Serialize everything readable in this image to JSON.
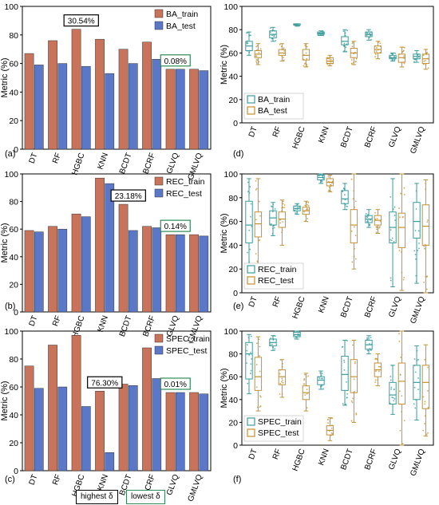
{
  "chart_data": [
    {
      "type": "bar",
      "panel_label": "(a)",
      "ylabel": "Metric (%)",
      "ylim": [
        0,
        100
      ],
      "yticks": [
        0,
        20,
        40,
        60,
        80,
        100
      ],
      "categories": [
        "DT",
        "RF",
        "HGBC",
        "KNN",
        "BCDT",
        "BCRF",
        "GLVQ",
        "GMLVQ"
      ],
      "series": [
        {
          "name": "BA_train",
          "color": "#c8735a",
          "values": [
            67,
            76,
            84,
            77,
            70,
            75,
            56,
            56
          ]
        },
        {
          "name": "BA_test",
          "color": "#5b78c8",
          "values": [
            59,
            60,
            58,
            53,
            60,
            63,
            56,
            55
          ]
        }
      ],
      "annotations": [
        {
          "text": "30.54%",
          "type": "highest",
          "category": "HGBC"
        },
        {
          "text": "0.08%",
          "type": "lowest",
          "category": "GLVQ"
        }
      ],
      "legend": "top-right"
    },
    {
      "type": "bar",
      "panel_label": "(b)",
      "ylabel": "Metric (%)",
      "ylim": [
        0,
        100
      ],
      "yticks": [
        0,
        20,
        40,
        60,
        80,
        100
      ],
      "categories": [
        "DT",
        "RF",
        "HGBC",
        "KNN",
        "BCDT",
        "BCRF",
        "GLVQ",
        "GMLVQ"
      ],
      "series": [
        {
          "name": "REC_train",
          "color": "#c8735a",
          "values": [
            59,
            62,
            71,
            97,
            78,
            62,
            56,
            56
          ]
        },
        {
          "name": "REC_test",
          "color": "#5b78c8",
          "values": [
            58,
            60,
            69,
            93,
            59,
            61,
            56,
            55
          ]
        }
      ],
      "annotations": [
        {
          "text": "23.18%",
          "type": "highest",
          "category": "BCDT"
        },
        {
          "text": "0.14%",
          "type": "lowest",
          "category": "GLVQ"
        }
      ],
      "legend": "top-right"
    },
    {
      "type": "bar",
      "panel_label": "(c)",
      "ylabel": "Metric (%)",
      "ylim": [
        0,
        100
      ],
      "yticks": [
        0,
        20,
        40,
        60,
        80,
        100
      ],
      "categories": [
        "DT",
        "RF",
        "HGBC",
        "KNN",
        "BCDT",
        "BCRF",
        "GLVQ",
        "GMLVQ"
      ],
      "series": [
        {
          "name": "SPEC_train",
          "color": "#c8735a",
          "values": [
            75,
            90,
            97,
            57,
            62,
            88,
            56,
            56
          ]
        },
        {
          "name": "SPEC_test",
          "color": "#5b78c8",
          "values": [
            59,
            60,
            46,
            13,
            61,
            66,
            56,
            55
          ]
        }
      ],
      "annotations": [
        {
          "text": "76.30%",
          "type": "highest",
          "category": "KNN"
        },
        {
          "text": "0.01%",
          "type": "lowest",
          "category": "GLVQ"
        }
      ],
      "legend": "top-right"
    },
    {
      "type": "box",
      "panel_label": "(d)",
      "ylabel": "Metric (%)",
      "ylim": [
        0,
        100
      ],
      "yticks": [
        0,
        20,
        40,
        60,
        80,
        100
      ],
      "categories": [
        "DT",
        "RF",
        "HGBC",
        "KNN",
        "BCDT",
        "BCRF",
        "GLVQ",
        "GMLVQ"
      ],
      "series": [
        {
          "name": "BA_train",
          "color": "#3a9c9c",
          "boxes": [
            {
              "min": 58,
              "q1": 62,
              "median": 66,
              "q3": 70,
              "max": 78
            },
            {
              "min": 70,
              "q1": 73,
              "median": 76,
              "q3": 79,
              "max": 82
            },
            {
              "min": 83,
              "q1": 84,
              "median": 84,
              "q3": 85,
              "max": 85
            },
            {
              "min": 75,
              "q1": 76,
              "median": 77,
              "q3": 78,
              "max": 79
            },
            {
              "min": 61,
              "q1": 67,
              "median": 70,
              "q3": 74,
              "max": 80
            },
            {
              "min": 71,
              "q1": 74,
              "median": 76,
              "q3": 78,
              "max": 80
            },
            {
              "min": 53,
              "q1": 55,
              "median": 56,
              "q3": 58,
              "max": 60
            },
            {
              "min": 52,
              "q1": 55,
              "median": 57,
              "q3": 59,
              "max": 62
            }
          ]
        },
        {
          "name": "BA_test",
          "color": "#c8902a",
          "boxes": [
            {
              "min": 50,
              "q1": 56,
              "median": 59,
              "q3": 62,
              "max": 68
            },
            {
              "min": 53,
              "q1": 58,
              "median": 60,
              "q3": 63,
              "max": 68
            },
            {
              "min": 48,
              "q1": 54,
              "median": 58,
              "q3": 63,
              "max": 68
            },
            {
              "min": 49,
              "q1": 51,
              "median": 53,
              "q3": 56,
              "max": 58
            },
            {
              "min": 50,
              "q1": 56,
              "median": 60,
              "q3": 64,
              "max": 70
            },
            {
              "min": 55,
              "q1": 60,
              "median": 63,
              "q3": 66,
              "max": 70
            },
            {
              "min": 48,
              "q1": 52,
              "median": 56,
              "q3": 59,
              "max": 65
            },
            {
              "min": 46,
              "q1": 51,
              "median": 55,
              "q3": 59,
              "max": 63
            }
          ]
        }
      ],
      "legend": "bottom-left"
    },
    {
      "type": "box",
      "panel_label": "(e)",
      "ylabel": "Metric (%)",
      "ylim": [
        0,
        100
      ],
      "yticks": [
        0,
        20,
        40,
        60,
        80,
        100
      ],
      "categories": [
        "DT",
        "RF",
        "HGBC",
        "KNN",
        "BCDT",
        "BCRF",
        "GLVQ",
        "GMLVQ"
      ],
      "series": [
        {
          "name": "REC_train",
          "color": "#3a9c9c",
          "boxes": [
            {
              "min": 20,
              "q1": 42,
              "median": 57,
              "q3": 77,
              "max": 96
            },
            {
              "min": 48,
              "q1": 57,
              "median": 63,
              "q3": 69,
              "max": 76
            },
            {
              "min": 66,
              "q1": 69,
              "median": 71,
              "q3": 73,
              "max": 75
            },
            {
              "min": 92,
              "q1": 95,
              "median": 97,
              "q3": 99,
              "max": 100
            },
            {
              "min": 70,
              "q1": 75,
              "median": 79,
              "q3": 86,
              "max": 92
            },
            {
              "min": 55,
              "q1": 59,
              "median": 62,
              "q3": 65,
              "max": 70
            },
            {
              "min": 5,
              "q1": 42,
              "median": 55,
              "q3": 68,
              "max": 96
            },
            {
              "min": 8,
              "q1": 46,
              "median": 60,
              "q3": 76,
              "max": 92
            }
          ]
        },
        {
          "name": "REC_test",
          "color": "#c8902a",
          "boxes": [
            {
              "min": 22,
              "q1": 47,
              "median": 58,
              "q3": 68,
              "max": 96
            },
            {
              "min": 40,
              "q1": 55,
              "median": 62,
              "q3": 68,
              "max": 78
            },
            {
              "min": 60,
              "q1": 66,
              "median": 69,
              "q3": 72,
              "max": 77
            },
            {
              "min": 85,
              "q1": 90,
              "median": 93,
              "q3": 96,
              "max": 99
            },
            {
              "min": 20,
              "q1": 42,
              "median": 57,
              "q3": 70,
              "max": 100
            },
            {
              "min": 50,
              "q1": 57,
              "median": 61,
              "q3": 65,
              "max": 70
            },
            {
              "min": 2,
              "q1": 38,
              "median": 55,
              "q3": 67,
              "max": 100
            },
            {
              "min": 0,
              "q1": 40,
              "median": 56,
              "q3": 74,
              "max": 95
            }
          ]
        }
      ],
      "legend": "bottom-left"
    },
    {
      "type": "box",
      "panel_label": "(f)",
      "ylabel": "Metric (%)",
      "ylim": [
        0,
        100
      ],
      "yticks": [
        0,
        20,
        40,
        60,
        80,
        100
      ],
      "categories": [
        "DT",
        "RF",
        "HGBC",
        "KNN",
        "BCDT",
        "BCRF",
        "GLVQ",
        "GMLVQ"
      ],
      "series": [
        {
          "name": "SPEC_train",
          "color": "#3a9c9c",
          "boxes": [
            {
              "min": 45,
              "q1": 58,
              "median": 80,
              "q3": 90,
              "max": 97
            },
            {
              "min": 83,
              "q1": 87,
              "median": 90,
              "q3": 93,
              "max": 96
            },
            {
              "min": 93,
              "q1": 95,
              "median": 97,
              "q3": 99,
              "max": 100
            },
            {
              "min": 49,
              "q1": 53,
              "median": 57,
              "q3": 60,
              "max": 65
            },
            {
              "min": 35,
              "q1": 48,
              "median": 62,
              "q3": 78,
              "max": 92
            },
            {
              "min": 80,
              "q1": 84,
              "median": 88,
              "q3": 92,
              "max": 96
            },
            {
              "min": 27,
              "q1": 36,
              "median": 44,
              "q3": 55,
              "max": 70
            },
            {
              "min": 22,
              "q1": 40,
              "median": 55,
              "q3": 70,
              "max": 87
            }
          ]
        },
        {
          "name": "SPEC_test",
          "color": "#c8902a",
          "boxes": [
            {
              "min": 30,
              "q1": 48,
              "median": 60,
              "q3": 77,
              "max": 95
            },
            {
              "min": 42,
              "q1": 53,
              "median": 60,
              "q3": 66,
              "max": 75
            },
            {
              "min": 30,
              "q1": 40,
              "median": 46,
              "q3": 52,
              "max": 63
            },
            {
              "min": 4,
              "q1": 9,
              "median": 13,
              "q3": 17,
              "max": 24
            },
            {
              "min": 20,
              "q1": 46,
              "median": 60,
              "q3": 75,
              "max": 92
            },
            {
              "min": 52,
              "q1": 60,
              "median": 66,
              "q3": 72,
              "max": 80
            },
            {
              "min": 0,
              "q1": 36,
              "median": 56,
              "q3": 72,
              "max": 100
            },
            {
              "min": 8,
              "q1": 32,
              "median": 55,
              "q3": 70,
              "max": 88
            }
          ]
        }
      ],
      "legend": "bottom-left"
    }
  ],
  "footer": {
    "highest_label": "highest δ",
    "lowest_label": "lowest δ"
  }
}
